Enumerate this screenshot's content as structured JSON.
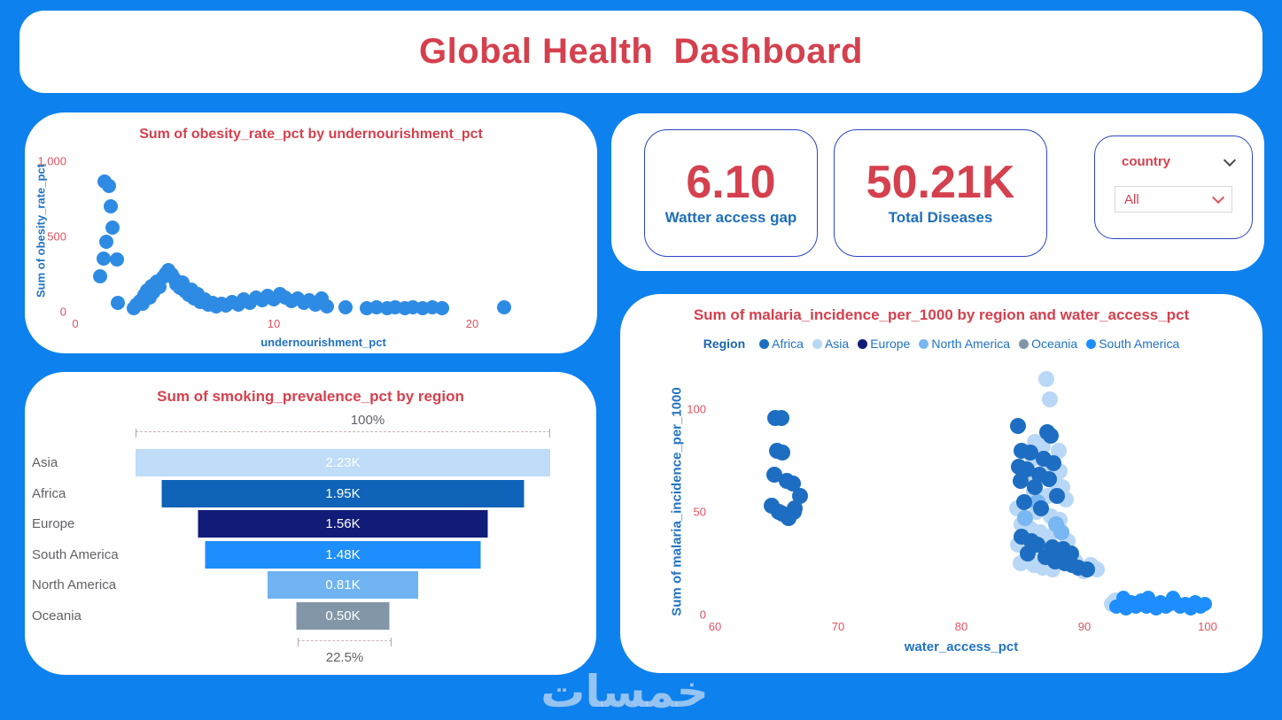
{
  "banner": {
    "title": "Global Health  Dashboard"
  },
  "kpis": {
    "cards": [
      {
        "value": "6.10",
        "label": "Watter access gap"
      },
      {
        "value": "50.21K",
        "label": "Total Diseases"
      }
    ]
  },
  "slicer": {
    "field_label": "country",
    "value": "All"
  },
  "watermark": {
    "text": "خمسات"
  },
  "colors": {
    "background": "#0D81EE",
    "title_red": "#D5404E",
    "tick_red": "#DE5260",
    "label_blue": "#2273C2",
    "scatter_blue": "#2E8BE4",
    "africa": "#1D6EC2",
    "asia": "#B9D7F6",
    "europe": "#101C77",
    "north_america": "#79B7F2",
    "oceania": "#8296A8",
    "south_america": "#1E8EFF"
  },
  "chart_data": [
    {
      "id": "obesity_scatter",
      "type": "scatter",
      "title": "Sum of obesity_rate_pct by undernourishment_pct",
      "xlabel": "undernourishment_pct",
      "ylabel": "Sum of obesity_rate_pct",
      "xlim": [
        0,
        25
      ],
      "ylim": [
        0,
        1000
      ],
      "grid": false,
      "xticks": [
        {
          "v": 0,
          "label": "0"
        },
        {
          "v": 10,
          "label": "10"
        },
        {
          "v": 20,
          "label": "20"
        }
      ],
      "yticks": [
        {
          "v": 0,
          "label": "0"
        },
        {
          "v": 500,
          "label": "500"
        },
        {
          "v": 1000,
          "label": "1,000"
        }
      ],
      "series": [
        {
          "name": "countries",
          "color": "#2E8BE4",
          "r": 8,
          "points": [
            [
              1.47,
              865
            ],
            [
              1.69,
              838
            ],
            [
              1.78,
              700
            ],
            [
              1.87,
              560
            ],
            [
              1.56,
              465
            ],
            [
              1.42,
              353
            ],
            [
              2.09,
              347
            ],
            [
              1.24,
              235
            ],
            [
              2.13,
              59
            ],
            [
              2.95,
              25
            ],
            [
              3.1,
              45
            ],
            [
              3.25,
              70
            ],
            [
              3.4,
              55
            ],
            [
              3.5,
              110
            ],
            [
              3.6,
              140
            ],
            [
              3.75,
              95
            ],
            [
              3.85,
              170
            ],
            [
              3.95,
              130
            ],
            [
              4.1,
              200
            ],
            [
              4.25,
              165
            ],
            [
              4.4,
              230
            ],
            [
              4.55,
              255
            ],
            [
              4.7,
              276
            ],
            [
              4.85,
              245
            ],
            [
              5.0,
              215
            ],
            [
              5.1,
              185
            ],
            [
              5.25,
              160
            ],
            [
              5.4,
              195
            ],
            [
              5.55,
              135
            ],
            [
              5.7,
              110
            ],
            [
              5.85,
              150
            ],
            [
              6.0,
              90
            ],
            [
              6.15,
              120
            ],
            [
              6.3,
              65
            ],
            [
              6.5,
              85
            ],
            [
              6.7,
              45
            ],
            [
              6.9,
              60
            ],
            [
              7.1,
              35
            ],
            [
              7.35,
              55
            ],
            [
              7.6,
              40
            ],
            [
              7.9,
              65
            ],
            [
              8.2,
              50
            ],
            [
              8.5,
              80
            ],
            [
              8.8,
              60
            ],
            [
              9.1,
              95
            ],
            [
              9.4,
              75
            ],
            [
              9.7,
              105
            ],
            [
              10.0,
              85
            ],
            [
              10.3,
              115
            ],
            [
              10.6,
              95
            ],
            [
              10.9,
              70
            ],
            [
              11.2,
              88
            ],
            [
              11.5,
              60
            ],
            [
              11.8,
              78
            ],
            [
              12.1,
              50
            ],
            [
              12.4,
              88
            ],
            [
              12.7,
              35
            ],
            [
              13.6,
              32
            ],
            [
              14.7,
              26
            ],
            [
              15.2,
              28
            ],
            [
              15.7,
              25
            ],
            [
              16.1,
              28
            ],
            [
              16.6,
              25
            ],
            [
              17.0,
              28
            ],
            [
              17.5,
              25
            ],
            [
              18.0,
              28
            ],
            [
              18.5,
              25
            ],
            [
              21.6,
              32
            ]
          ]
        }
      ]
    },
    {
      "id": "smoking_funnel",
      "type": "funnel",
      "title": "Sum of smoking_prevalence_pct by region",
      "categories": [
        "Asia",
        "Africa",
        "Europe",
        "South America",
        "North America",
        "Oceania"
      ],
      "values": [
        2230,
        1950,
        1560,
        1480,
        810,
        500
      ],
      "value_labels": [
        "2.23K",
        "1.95K",
        "1.56K",
        "1.48K",
        "0.81K",
        "0.50K"
      ],
      "bar_colors": [
        "#BFDCF8",
        "#0F63B8",
        "#101C77",
        "#1E8EFF",
        "#6FB3F3",
        "#8296A8"
      ],
      "top_label": "100%",
      "bottom_label": "22.5%"
    },
    {
      "id": "malaria_scatter",
      "type": "scatter",
      "title": "Sum of malaria_incidence_per_1000 by region and water_access_pct",
      "xlabel": "water_access_pct",
      "ylabel": "Sum of malaria_incidence_per_1000",
      "legend_title": "Region",
      "legend_position": "top",
      "xlim": [
        60,
        100
      ],
      "ylim": [
        0,
        120
      ],
      "grid": false,
      "xticks": [
        {
          "v": 60,
          "label": "60"
        },
        {
          "v": 70,
          "label": "70"
        },
        {
          "v": 80,
          "label": "80"
        },
        {
          "v": 90,
          "label": "90"
        },
        {
          "v": 100,
          "label": "100"
        }
      ],
      "yticks": [
        {
          "v": 0,
          "label": "0"
        },
        {
          "v": 50,
          "label": "50"
        },
        {
          "v": 100,
          "label": "100"
        }
      ],
      "legend": [
        {
          "name": "Africa",
          "color": "#1D6EC2"
        },
        {
          "name": "Asia",
          "color": "#B9D7F6"
        },
        {
          "name": "Europe",
          "color": "#101C77"
        },
        {
          "name": "North America",
          "color": "#79B7F2"
        },
        {
          "name": "Oceania",
          "color": "#8296A8"
        },
        {
          "name": "South America",
          "color": "#1E8EFF"
        }
      ],
      "series": [
        {
          "name": "Asia",
          "color": "#B9D7F6",
          "r": 9,
          "points": [
            [
              86.9,
              115
            ],
            [
              87.2,
              105
            ],
            [
              86.0,
              84
            ],
            [
              86.6,
              82
            ],
            [
              87.9,
              80
            ],
            [
              85.8,
              76
            ],
            [
              86.9,
              73
            ],
            [
              88.0,
              70
            ],
            [
              85.5,
              68
            ],
            [
              87.7,
              64
            ],
            [
              88.2,
              62
            ],
            [
              85.9,
              60
            ],
            [
              87.0,
              58
            ],
            [
              88.5,
              56
            ],
            [
              84.5,
              52
            ],
            [
              86.1,
              50
            ],
            [
              87.3,
              48
            ],
            [
              88.0,
              46
            ],
            [
              84.9,
              44
            ],
            [
              85.6,
              42
            ],
            [
              86.4,
              40
            ],
            [
              87.1,
              38
            ],
            [
              88.6,
              36
            ],
            [
              84.6,
              34
            ],
            [
              85.3,
              32
            ],
            [
              86.7,
              30
            ],
            [
              87.9,
              28
            ],
            [
              88.7,
              27
            ],
            [
              89.3,
              26
            ],
            [
              84.8,
              25
            ],
            [
              85.9,
              24
            ],
            [
              86.6,
              23
            ],
            [
              87.4,
              22
            ],
            [
              89.9,
              21
            ],
            [
              90.5,
              24
            ],
            [
              91.0,
              22
            ],
            [
              92.2,
              5
            ],
            [
              92.5,
              7
            ]
          ]
        },
        {
          "name": "North America",
          "color": "#79B7F2",
          "r": 9,
          "points": [
            [
              86.2,
              55
            ],
            [
              87.7,
              44
            ],
            [
              85.2,
              47
            ],
            [
              88.1,
              40
            ]
          ]
        },
        {
          "name": "Africa",
          "color": "#1D6EC2",
          "r": 9,
          "points": [
            [
              64.9,
              96
            ],
            [
              65.4,
              96
            ],
            [
              65.0,
              80
            ],
            [
              65.5,
              79
            ],
            [
              64.8,
              68
            ],
            [
              65.8,
              65
            ],
            [
              66.3,
              64
            ],
            [
              66.9,
              58
            ],
            [
              64.6,
              53
            ],
            [
              65.2,
              50
            ],
            [
              65.5,
              49
            ],
            [
              66.0,
              47
            ],
            [
              66.4,
              50
            ],
            [
              66.5,
              52
            ],
            [
              84.6,
              92
            ],
            [
              87.0,
              89
            ],
            [
              87.3,
              87
            ],
            [
              84.9,
              80
            ],
            [
              85.6,
              79
            ],
            [
              86.7,
              76
            ],
            [
              87.5,
              74
            ],
            [
              84.7,
              72
            ],
            [
              85.3,
              71
            ],
            [
              86.3,
              68
            ],
            [
              87.1,
              66
            ],
            [
              84.8,
              65
            ],
            [
              86.0,
              62
            ],
            [
              87.8,
              58
            ],
            [
              85.1,
              55
            ],
            [
              86.5,
              52
            ],
            [
              84.9,
              38
            ],
            [
              85.7,
              36
            ],
            [
              86.2,
              34
            ],
            [
              87.4,
              33
            ],
            [
              88.3,
              32
            ],
            [
              88.9,
              30
            ],
            [
              85.4,
              30
            ],
            [
              86.8,
              28
            ],
            [
              87.6,
              26
            ],
            [
              88.4,
              25
            ],
            [
              89.0,
              24
            ],
            [
              89.5,
              23
            ],
            [
              90.2,
              22
            ]
          ]
        },
        {
          "name": "Europe",
          "color": "#101C77",
          "r": 9,
          "points": []
        },
        {
          "name": "Oceania",
          "color": "#8296A8",
          "r": 9,
          "points": []
        },
        {
          "name": "South America",
          "color": "#1E8EFF",
          "r": 8,
          "points": [
            [
              92.6,
              4
            ],
            [
              93.0,
              5
            ],
            [
              93.4,
              3
            ],
            [
              93.8,
              6
            ],
            [
              94.2,
              4
            ],
            [
              94.6,
              7
            ],
            [
              95.0,
              4
            ],
            [
              95.4,
              5
            ],
            [
              95.8,
              3
            ],
            [
              96.2,
              6
            ],
            [
              96.6,
              4
            ],
            [
              97.0,
              5
            ],
            [
              97.4,
              6
            ],
            [
              97.8,
              4
            ],
            [
              98.2,
              5
            ],
            [
              98.6,
              3
            ],
            [
              99.0,
              6
            ],
            [
              99.4,
              4
            ],
            [
              99.8,
              5
            ],
            [
              93.2,
              8
            ],
            [
              95.2,
              8
            ],
            [
              97.2,
              8
            ]
          ]
        }
      ]
    }
  ]
}
